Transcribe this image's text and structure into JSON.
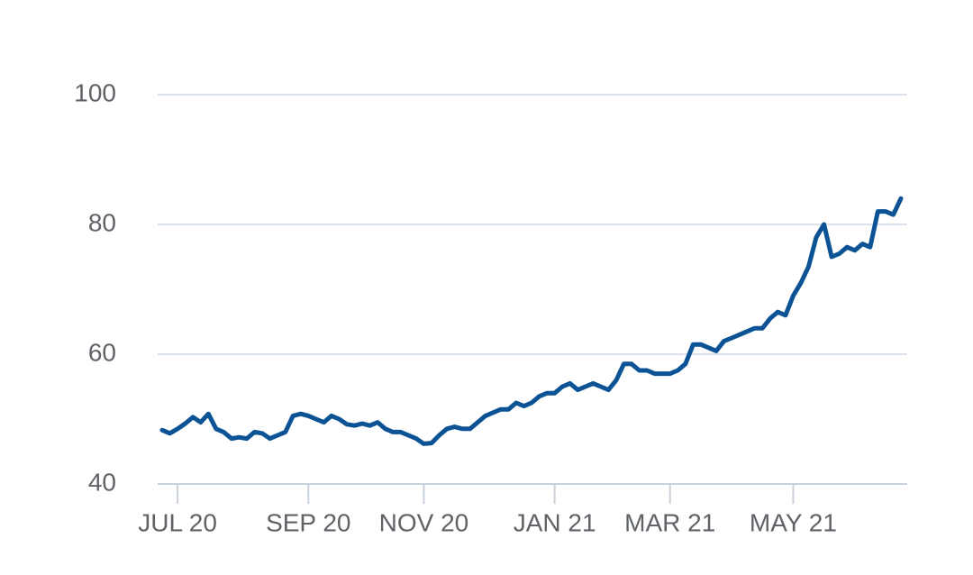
{
  "chart_data": {
    "type": "line",
    "categories": [
      null,
      null,
      "JUL 20",
      null,
      null,
      null,
      null,
      null,
      null,
      null,
      null,
      null,
      null,
      null,
      null,
      null,
      null,
      null,
      null,
      "SEP 20",
      null,
      null,
      null,
      null,
      null,
      null,
      null,
      null,
      null,
      null,
      null,
      null,
      null,
      null,
      "NOV 20",
      null,
      null,
      null,
      null,
      null,
      null,
      null,
      null,
      null,
      null,
      null,
      null,
      null,
      null,
      null,
      null,
      "JAN 21",
      null,
      null,
      null,
      null,
      null,
      null,
      null,
      null,
      null,
      null,
      null,
      null,
      null,
      null,
      "MAR 21",
      null,
      null,
      null,
      null,
      null,
      null,
      null,
      null,
      null,
      null,
      null,
      null,
      null,
      null,
      null,
      "MAY 21",
      null,
      null,
      null,
      null,
      null,
      null,
      null,
      null,
      null,
      null,
      null,
      null,
      null,
      null
    ],
    "series": [
      {
        "color": "#0b5394",
        "values": [
          48.3,
          47.8,
          48.5,
          49.3,
          50.3,
          49.5,
          50.8,
          48.5,
          48,
          47,
          47.2,
          47,
          48,
          47.8,
          47,
          47.5,
          48,
          50.5,
          50.8,
          50.5,
          50,
          49.5,
          50.5,
          50,
          49.2,
          49,
          49.3,
          49,
          49.5,
          48.5,
          48,
          48,
          47.5,
          47,
          46.2,
          46.3,
          47.5,
          48.5,
          48.8,
          48.5,
          48.5,
          49.5,
          50.5,
          51,
          51.5,
          51.5,
          52.5,
          52,
          52.5,
          53.5,
          54,
          54,
          55,
          55.5,
          54.5,
          55,
          55.5,
          55,
          54.5,
          56,
          58.5,
          58.5,
          57.5,
          57.5,
          57,
          57,
          57,
          57.5,
          58.5,
          61.5,
          61.5,
          61,
          60.5,
          62,
          62.5,
          63,
          63.5,
          64,
          64,
          65.5,
          66.5,
          66,
          69,
          71,
          73.5,
          78,
          80,
          75,
          75.5,
          76.5,
          76,
          77,
          76.5,
          82,
          82,
          81.5,
          84
        ]
      }
    ],
    "ylim": [
      40,
      100
    ],
    "yticks": [
      40,
      60,
      80,
      100
    ],
    "grid": true
  }
}
